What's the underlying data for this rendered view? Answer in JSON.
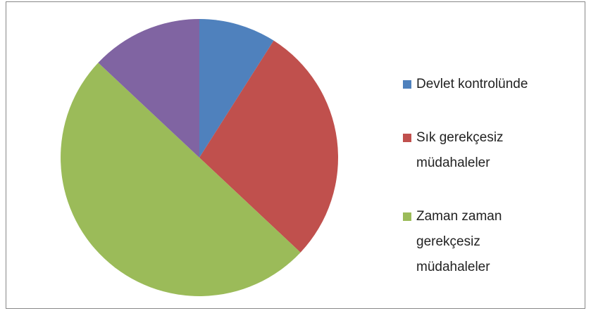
{
  "chart_data": {
    "type": "pie",
    "categories": [
      "Devlet kontrolünde",
      "Sık gerekçesiz müdahaleler",
      "Zaman zaman gerekçesiz müdahaleler",
      null
    ],
    "values": [
      9,
      28,
      50,
      13
    ],
    "colors": [
      "#4f81bd",
      "#c0504d",
      "#9bbb59",
      "#8064a2"
    ],
    "legend": "right"
  }
}
